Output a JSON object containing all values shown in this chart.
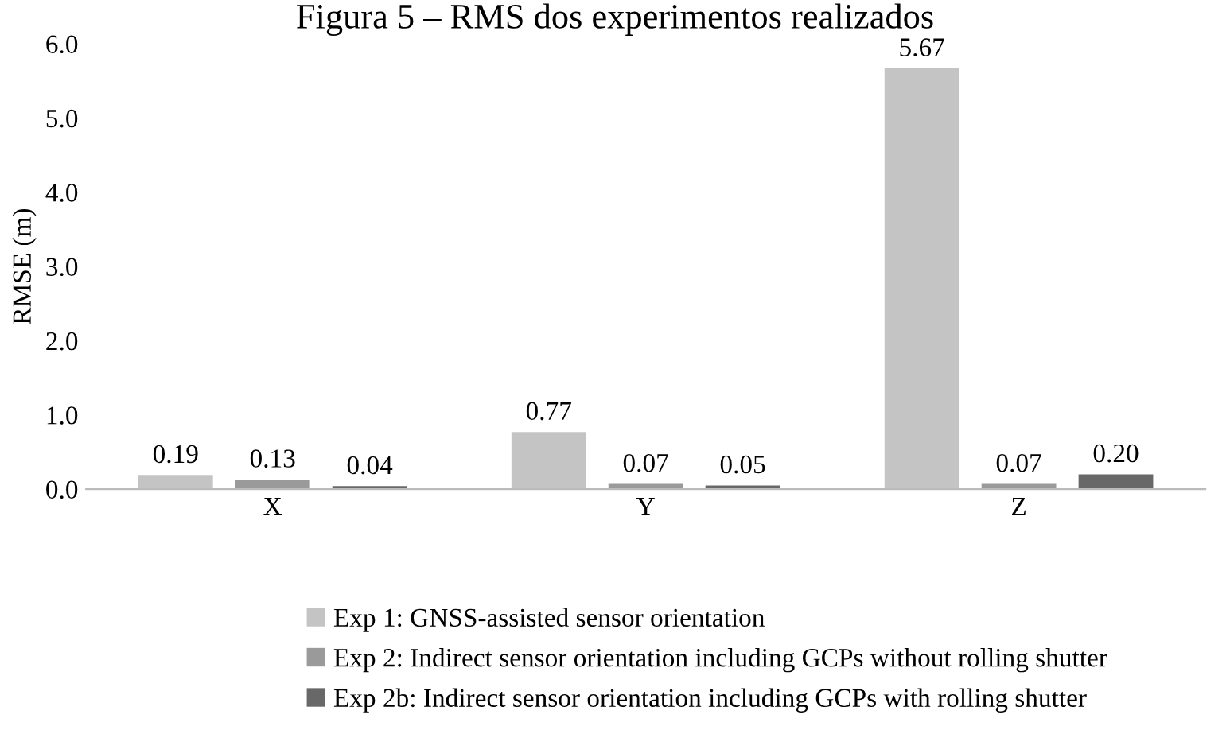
{
  "chart_data": {
    "type": "bar",
    "title": "Figura 5 – RMS dos experimentos realizados",
    "ylabel": "RMSE (m)",
    "categories": [
      "X",
      "Y",
      "Z"
    ],
    "series": [
      {
        "name": "Exp 1: GNSS-assisted sensor orientation",
        "color": "#c4c4c4",
        "values": [
          0.19,
          0.77,
          5.67
        ]
      },
      {
        "name": "Exp 2: Indirect sensor orientation including GCPs without rolling shutter",
        "color": "#9a9a9a",
        "values": [
          0.13,
          0.07,
          0.07
        ]
      },
      {
        "name": "Exp 2b: Indirect sensor orientation including GCPs with rolling shutter",
        "color": "#686868",
        "values": [
          0.04,
          0.05,
          0.2
        ]
      }
    ],
    "value_labels": [
      [
        "0.19",
        "0.77",
        "5.67"
      ],
      [
        "0.13",
        "0.07",
        "0.07"
      ],
      [
        "0.04",
        "0.05",
        "0.20"
      ]
    ],
    "ylim": [
      0,
      6.0
    ],
    "yticks": [
      {
        "value": 0,
        "label": "0.0"
      },
      {
        "value": 1,
        "label": "1.0"
      },
      {
        "value": 2,
        "label": "2.0"
      },
      {
        "value": 3,
        "label": "3.0"
      },
      {
        "value": 4,
        "label": "4.0"
      },
      {
        "value": 5,
        "label": "5.0"
      },
      {
        "value": 6,
        "label": "6.0"
      }
    ],
    "grid": false,
    "legend": "bottom"
  }
}
